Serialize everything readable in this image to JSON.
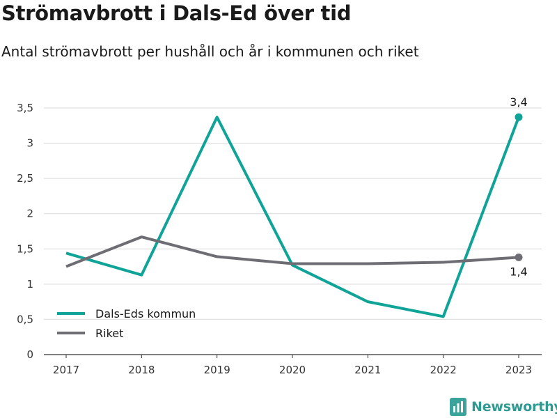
{
  "header": {
    "title": "Strömavbrott i Dals-Ed över tid",
    "subtitle": "Antal strömavbrott per hushåll och år i kommunen och riket"
  },
  "brand": {
    "name": "Newsworthy",
    "icon": "newsworthy-logo-icon",
    "color": "#3aa39a"
  },
  "chart_data": {
    "type": "line",
    "title": "Strömavbrott i Dals-Ed över tid",
    "subtitle": "Antal strömavbrott per hushåll och år i kommunen och riket",
    "x": [
      "2017",
      "2018",
      "2019",
      "2020",
      "2021",
      "2022",
      "2023"
    ],
    "ylim": [
      0,
      3.5
    ],
    "yticks": [
      0,
      0.5,
      1,
      1.5,
      2,
      2.5,
      3,
      3.5
    ],
    "ytick_labels": [
      "0",
      "0,5",
      "1",
      "1,5",
      "2",
      "2,5",
      "3",
      "3,5"
    ],
    "grid": true,
    "legend_position": "bottom-left",
    "series": [
      {
        "name": "Dals-Eds kommun",
        "color": "#10a398",
        "values": [
          1.44,
          1.13,
          3.37,
          1.27,
          0.75,
          0.54,
          3.37
        ],
        "end_label": "3,4"
      },
      {
        "name": "Riket",
        "color": "#6e6d73",
        "values": [
          1.25,
          1.67,
          1.39,
          1.29,
          1.29,
          1.31,
          1.38
        ],
        "end_label": "1,4"
      }
    ]
  }
}
